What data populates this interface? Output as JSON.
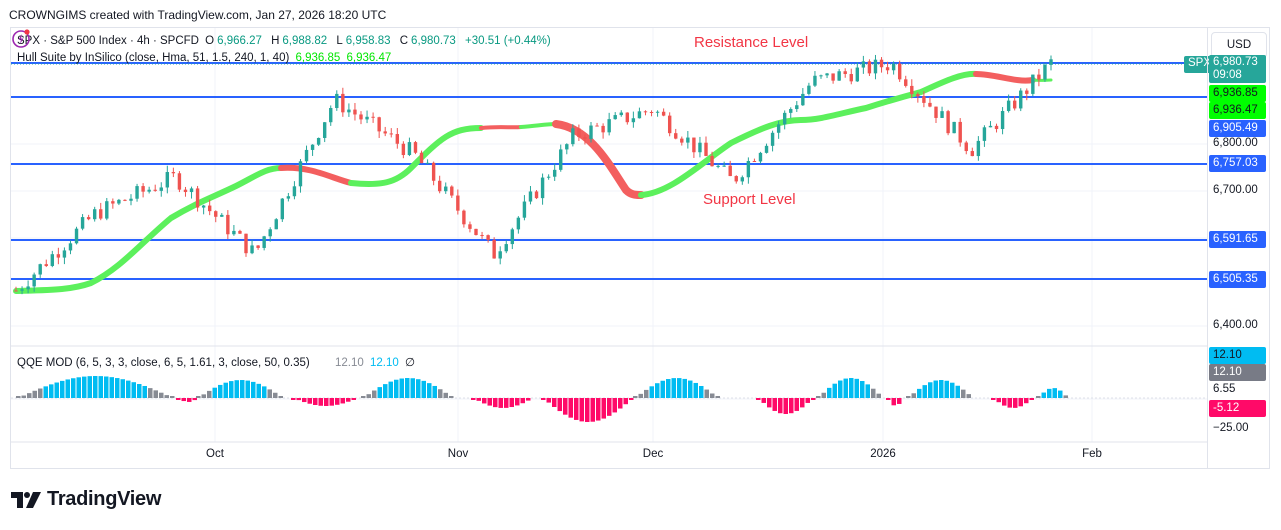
{
  "credit": "CROWNGIMS created with TradingView.com, Jan 27, 2026 18:20 UTC",
  "symbol": {
    "ticker": "SPX",
    "name": "S&P 500 Index",
    "interval": "4h",
    "source": "SPCFD",
    "header": "SPX · S&P 500 Index · 4h · SPCFD",
    "open_label": "O",
    "open": "6,966.27",
    "high_label": "H",
    "high": "6,988.82",
    "low_label": "L",
    "low": "6,958.83",
    "close_label": "C",
    "close": "6,980.73",
    "change": "+30.51 (+0.44%)"
  },
  "hull": {
    "label": "Hull Suite by InSilico (close, Hma, 51, 1.5, 240, 1, 40)",
    "value1": "6,936.85",
    "value2": "6,936.47"
  },
  "qqe": {
    "label": "QQE MOD (6, 5, 3, 3, close, 6, 5, 1.61, 3, close, 50, 0.35)",
    "value1": "12.10",
    "value2": "12.10",
    "value3": "∅"
  },
  "annotations": {
    "resistance": "Resistance Level",
    "support": "Support Level"
  },
  "price_axis": {
    "currency": "USD",
    "current_price": "6,980.73",
    "countdown": "09:08",
    "tag": "SPX",
    "hull_labels": [
      "6,936.85",
      "6,936.47"
    ],
    "level_labels": [
      "6,905.49",
      "6,757.03",
      "6,591.65",
      "6,505.35"
    ],
    "ticks": [
      "6,800.00",
      "6,700.00",
      "6,400.00"
    ],
    "qqe_labels": [
      "12.10",
      "12.10",
      "-5.12"
    ],
    "qqe_ticks": [
      "6.55",
      "−25.00"
    ]
  },
  "time_axis": [
    "Oct",
    "Nov",
    "Dec",
    "2026",
    "Feb"
  ],
  "colors": {
    "up": "#26a69a",
    "down": "#ef5350",
    "hull_up": "#5cf05c",
    "hull_down": "#f35f5f",
    "level": "#2962ff",
    "qqe_blue": "#00bcf2",
    "qqe_gray": "#878b94",
    "qqe_red": "#ff0a68",
    "annotation": "#f23645"
  },
  "logo": "TradingView",
  "chart_data": {
    "type": "candlestick",
    "title": "SPX · S&P 500 Index · 4h · SPCFD",
    "xlabel": "",
    "ylabel": "USD",
    "x_ticks": [
      "Oct",
      "Nov",
      "Dec",
      "2026",
      "Feb"
    ],
    "ylim": [
      6380,
      7010
    ],
    "horizontal_levels": [
      {
        "label": "Resistance",
        "value": 6980.73
      },
      {
        "value": 6905.49
      },
      {
        "value": 6757.03
      },
      {
        "value": 6591.65
      },
      {
        "value": 6505.35
      }
    ],
    "annotations": [
      "Resistance Level",
      "Support Level"
    ],
    "last_ohlc": {
      "open": 6966.27,
      "high": 6988.82,
      "low": 6958.83,
      "close": 6980.73,
      "change": 30.51,
      "change_pct": 0.44
    },
    "hull_suite": {
      "value1": 6936.85,
      "value2": 6936.47
    },
    "approx_price_path": [
      {
        "x": "mid-Sep",
        "price": 6480
      },
      {
        "x": "late-Sep",
        "price": 6650
      },
      {
        "x": "Oct 8",
        "price": 6730
      },
      {
        "x": "Oct 10",
        "price": 6560
      },
      {
        "x": "Oct 28",
        "price": 6900
      },
      {
        "x": "Nov 4",
        "price": 6780
      },
      {
        "x": "Nov 20",
        "price": 6560
      },
      {
        "x": "Nov 28",
        "price": 6820
      },
      {
        "x": "Dec 11",
        "price": 6880
      },
      {
        "x": "Dec 17",
        "price": 6720
      },
      {
        "x": "Dec 26",
        "price": 6940
      },
      {
        "x": "Jan 6",
        "price": 6980
      },
      {
        "x": "Jan 20",
        "price": 6790
      },
      {
        "x": "Jan 27",
        "price": 6980.73
      }
    ],
    "qqe_mod": {
      "params": "6, 5, 3, 3, close, 6, 5, 1.61, 3, close, 50, 0.35",
      "last": 12.1,
      "ticks": [
        6.55,
        -25.0
      ],
      "labels": [
        12.1,
        12.1,
        -5.12
      ]
    }
  }
}
